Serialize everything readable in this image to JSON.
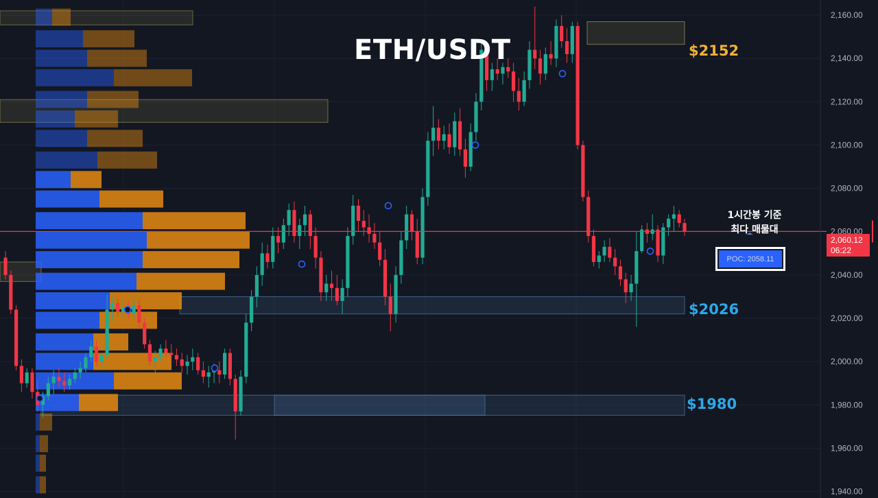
{
  "chart_data": {
    "type": "candlestick",
    "title": "ETH/USDT",
    "ylim": [
      1937,
      2167
    ],
    "y_ticks": [
      "2,160.00",
      "2,140.00",
      "2,120.00",
      "2,100.00",
      "2,080.00",
      "2,060.00",
      "2,040.00",
      "2,020.00",
      "2,000.00",
      "1,980.00",
      "1,960.00",
      "1,940.00"
    ],
    "y_tick_values": [
      2160,
      2140,
      2120,
      2100,
      2080,
      2060,
      2040,
      2020,
      2000,
      1980,
      1960,
      1940
    ],
    "last_price": {
      "price": 2060.12,
      "label": "2,060.12",
      "countdown": "06:22"
    },
    "levels": [
      {
        "label": "$2152",
        "price": 2152,
        "color": "#f2b134",
        "kind": "resistance"
      },
      {
        "label": "$2026",
        "price": 2026,
        "color": "#2ca8e8",
        "kind": "support"
      },
      {
        "label": "$1980",
        "price": 1980,
        "color": "#2ca8e8",
        "kind": "support"
      }
    ],
    "annotation": {
      "line1": "1시간봉 기준",
      "line2": "최다 매물대"
    },
    "poc": {
      "label": "POC: 2058.11",
      "price": 2058.11
    },
    "volume_profile": {
      "price_rows": [
        2159,
        2149,
        2140,
        2131,
        2121,
        2112,
        2103,
        2093,
        2084,
        2075,
        2065,
        2056,
        2047,
        2037,
        2028,
        2019,
        2009,
        2000,
        1991,
        1981,
        1972,
        1962,
        1953,
        1943
      ],
      "buy": [
        8,
        23,
        25,
        38,
        25,
        19,
        25,
        30,
        17,
        31,
        52,
        54,
        52,
        49,
        36,
        31,
        28,
        28,
        38,
        21,
        2,
        2,
        2,
        2
      ],
      "sell": [
        9,
        25,
        29,
        38,
        25,
        21,
        27,
        29,
        15,
        31,
        50,
        50,
        47,
        43,
        35,
        28,
        17,
        38,
        33,
        19,
        6,
        4,
        3,
        3
      ]
    },
    "candles_ohlc": [
      [
        2048,
        2051,
        2038,
        2040
      ],
      [
        2040,
        2042,
        2022,
        2024
      ],
      [
        2024,
        2026,
        1996,
        1998
      ],
      [
        1998,
        2001,
        1986,
        1990
      ],
      [
        1990,
        1997,
        1988,
        1995
      ],
      [
        1995,
        1997,
        1983,
        1986
      ],
      [
        1986,
        1991,
        1977,
        1980
      ],
      [
        1980,
        1986,
        1974,
        1984
      ],
      [
        1984,
        1993,
        1982,
        1990
      ],
      [
        1990,
        1996,
        1985,
        1993
      ],
      [
        1993,
        1997,
        1988,
        1991
      ],
      [
        1991,
        1995,
        1986,
        1989
      ],
      [
        1989,
        1994,
        1987,
        1992
      ],
      [
        1992,
        1997,
        1990,
        1995
      ],
      [
        1995,
        2000,
        1992,
        1997
      ],
      [
        1997,
        2004,
        1995,
        2002
      ],
      [
        2002,
        2010,
        2000,
        2007
      ],
      [
        2007,
        2010,
        1998,
        2000
      ],
      [
        2000,
        2004,
        1996,
        2003
      ],
      [
        2003,
        2031,
        2001,
        2024
      ],
      [
        2024,
        2030,
        2019,
        2027
      ],
      [
        2027,
        2029,
        2021,
        2023
      ],
      [
        2023,
        2028,
        2020,
        2025
      ],
      [
        2025,
        2028,
        2020,
        2022
      ],
      [
        2022,
        2030,
        2020,
        2026
      ],
      [
        2026,
        2029,
        2015,
        2018
      ],
      [
        2018,
        2020,
        2006,
        2008
      ],
      [
        2008,
        2010,
        1998,
        2000
      ],
      [
        2000,
        2005,
        1995,
        2002
      ],
      [
        2002,
        2008,
        2000,
        2006
      ],
      [
        2006,
        2010,
        2002,
        2004
      ],
      [
        2004,
        2008,
        2000,
        2003
      ],
      [
        2003,
        2006,
        1998,
        2001
      ],
      [
        2001,
        2004,
        1995,
        1998
      ],
      [
        1998,
        2003,
        1994,
        2000
      ],
      [
        2000,
        2006,
        1996,
        2002
      ],
      [
        2002,
        2004,
        1994,
        1996
      ],
      [
        1996,
        2000,
        1990,
        1993
      ],
      [
        1993,
        1998,
        1988,
        1995
      ],
      [
        1995,
        1999,
        1990,
        1996
      ],
      [
        1996,
        2000,
        1990,
        1994
      ],
      [
        1994,
        2006,
        1992,
        2004
      ],
      [
        2004,
        2006,
        1989,
        1992
      ],
      [
        1992,
        1994,
        1964,
        1977
      ],
      [
        1977,
        1996,
        1975,
        1993
      ],
      [
        1993,
        2022,
        1990,
        2018
      ],
      [
        2018,
        2033,
        2014,
        2030
      ],
      [
        2030,
        2044,
        2025,
        2040
      ],
      [
        2040,
        2055,
        2035,
        2050
      ],
      [
        2050,
        2054,
        2043,
        2046
      ],
      [
        2046,
        2062,
        2043,
        2058
      ],
      [
        2058,
        2062,
        2050,
        2055
      ],
      [
        2055,
        2066,
        2052,
        2063
      ],
      [
        2063,
        2073,
        2058,
        2070
      ],
      [
        2070,
        2074,
        2055,
        2058
      ],
      [
        2058,
        2066,
        2052,
        2063
      ],
      [
        2063,
        2072,
        2058,
        2068
      ],
      [
        2068,
        2070,
        2052,
        2058
      ],
      [
        2058,
        2062,
        2043,
        2048
      ],
      [
        2048,
        2051,
        2028,
        2032
      ],
      [
        2032,
        2040,
        2028,
        2036
      ],
      [
        2036,
        2042,
        2028,
        2034
      ],
      [
        2034,
        2040,
        2026,
        2028
      ],
      [
        2028,
        2038,
        2022,
        2034
      ],
      [
        2034,
        2062,
        2030,
        2058
      ],
      [
        2058,
        2077,
        2054,
        2072
      ],
      [
        2072,
        2075,
        2060,
        2065
      ],
      [
        2065,
        2070,
        2058,
        2062
      ],
      [
        2062,
        2068,
        2055,
        2059
      ],
      [
        2059,
        2064,
        2052,
        2055
      ],
      [
        2055,
        2060,
        2044,
        2047
      ],
      [
        2047,
        2052,
        2026,
        2030
      ],
      [
        2030,
        2036,
        2014,
        2022
      ],
      [
        2022,
        2044,
        2018,
        2040
      ],
      [
        2040,
        2060,
        2036,
        2056
      ],
      [
        2056,
        2072,
        2052,
        2068
      ],
      [
        2068,
        2070,
        2056,
        2060
      ],
      [
        2060,
        2066,
        2045,
        2048
      ],
      [
        2048,
        2080,
        2045,
        2076
      ],
      [
        2076,
        2106,
        2072,
        2102
      ],
      [
        2102,
        2118,
        2095,
        2108
      ],
      [
        2108,
        2112,
        2098,
        2102
      ],
      [
        2102,
        2109,
        2098,
        2105
      ],
      [
        2105,
        2110,
        2096,
        2099
      ],
      [
        2099,
        2115,
        2095,
        2111
      ],
      [
        2111,
        2117,
        2095,
        2098
      ],
      [
        2098,
        2103,
        2085,
        2090
      ],
      [
        2090,
        2110,
        2088,
        2106
      ],
      [
        2106,
        2124,
        2102,
        2120
      ],
      [
        2120,
        2148,
        2116,
        2144
      ],
      [
        2144,
        2147,
        2125,
        2130
      ],
      [
        2130,
        2138,
        2125,
        2135
      ],
      [
        2135,
        2140,
        2130,
        2133
      ],
      [
        2133,
        2138,
        2128,
        2136
      ],
      [
        2136,
        2140,
        2131,
        2134
      ],
      [
        2134,
        2138,
        2120,
        2125
      ],
      [
        2125,
        2131,
        2116,
        2120
      ],
      [
        2120,
        2134,
        2118,
        2130
      ],
      [
        2130,
        2148,
        2126,
        2144
      ],
      [
        2144,
        2164,
        2135,
        2140
      ],
      [
        2140,
        2144,
        2128,
        2133
      ],
      [
        2133,
        2145,
        2130,
        2142
      ],
      [
        2142,
        2148,
        2137,
        2140
      ],
      [
        2140,
        2158,
        2136,
        2155
      ],
      [
        2155,
        2160,
        2145,
        2148
      ],
      [
        2148,
        2154,
        2138,
        2142
      ],
      [
        2142,
        2157,
        2138,
        2155
      ],
      [
        2155,
        2157,
        2098,
        2100
      ],
      [
        2100,
        2102,
        2074,
        2076
      ],
      [
        2076,
        2079,
        2055,
        2058
      ],
      [
        2058,
        2061,
        2044,
        2046
      ],
      [
        2046,
        2051,
        2043,
        2049
      ],
      [
        2049,
        2056,
        2046,
        2053
      ],
      [
        2053,
        2057,
        2046,
        2048
      ],
      [
        2048,
        2052,
        2040,
        2044
      ],
      [
        2044,
        2047,
        2035,
        2038
      ],
      [
        2038,
        2041,
        2027,
        2032
      ],
      [
        2032,
        2040,
        2028,
        2036
      ],
      [
        2036,
        2060,
        2016,
        2051
      ],
      [
        2051,
        2063,
        2050,
        2061
      ],
      [
        2061,
        2064,
        2055,
        2059
      ],
      [
        2059,
        2068,
        2056,
        2061
      ],
      [
        2061,
        2063,
        2046,
        2049
      ],
      [
        2049,
        2064,
        2045,
        2062
      ],
      [
        2062,
        2068,
        2058,
        2066
      ],
      [
        2066,
        2072,
        2060,
        2068
      ],
      [
        2068,
        2070,
        2062,
        2064
      ],
      [
        2064,
        2066,
        2058,
        2060
      ]
    ]
  }
}
